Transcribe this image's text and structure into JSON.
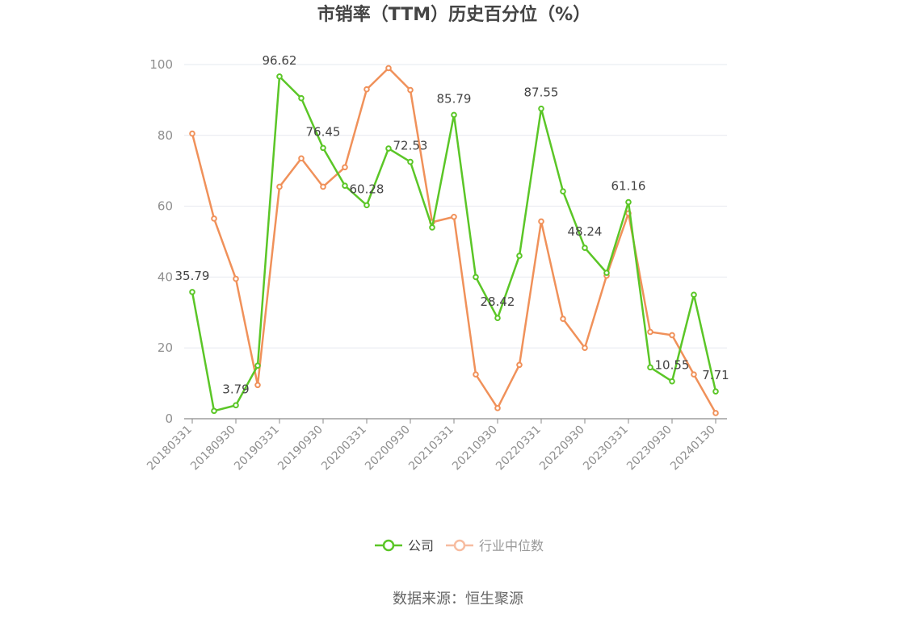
{
  "chart_data": {
    "type": "line",
    "title": "市销率（TTM）历史百分位（%）",
    "source": "数据来源：恒生聚源",
    "ylim": [
      0,
      100
    ],
    "yticks": [
      0,
      20,
      40,
      60,
      80,
      100
    ],
    "grid": true,
    "legend_position": "bottom",
    "x": [
      "20180331",
      "20180630",
      "20180930",
      "20181231",
      "20190331",
      "20190630",
      "20190930",
      "20191231",
      "20200331",
      "20200630",
      "20200930",
      "20201231",
      "20210331",
      "20210630",
      "20210930",
      "20211231",
      "20220331",
      "20220630",
      "20220930",
      "20221231",
      "20230331",
      "20230630",
      "20230930",
      "20231231",
      "20240130"
    ],
    "xtick_labels": [
      "20180331",
      "20180930",
      "20190331",
      "20190930",
      "20200331",
      "20200930",
      "20210331",
      "20210930",
      "20220331",
      "20220930",
      "20230331",
      "20230930",
      "20240130"
    ],
    "series": [
      {
        "name": "公司",
        "color": "#5bc627",
        "values": [
          35.79,
          2.2,
          3.79,
          15.0,
          96.62,
          90.5,
          76.45,
          65.8,
          60.28,
          76.3,
          72.53,
          54.0,
          85.79,
          40.0,
          28.42,
          46.0,
          87.55,
          64.2,
          48.24,
          41.2,
          61.16,
          14.5,
          10.55,
          35.0,
          7.71
        ],
        "labels": [
          "35.79",
          "",
          "3.79",
          "",
          "96.62",
          "",
          "76.45",
          "",
          "60.28",
          "",
          "72.53",
          "",
          "85.79",
          "",
          "28.42",
          "",
          "87.55",
          "",
          "48.24",
          "",
          "61.16",
          "",
          "10.55",
          "",
          "7.71"
        ]
      },
      {
        "name": "行业中位数",
        "color": "#f0915a",
        "values": [
          80.5,
          56.5,
          39.5,
          9.5,
          65.5,
          73.5,
          65.5,
          71.0,
          93.0,
          99.0,
          92.8,
          55.5,
          57.0,
          12.5,
          3.0,
          15.2,
          55.7,
          28.2,
          20.0,
          40.4,
          58.0,
          24.5,
          23.6,
          12.5,
          1.6
        ]
      }
    ]
  }
}
